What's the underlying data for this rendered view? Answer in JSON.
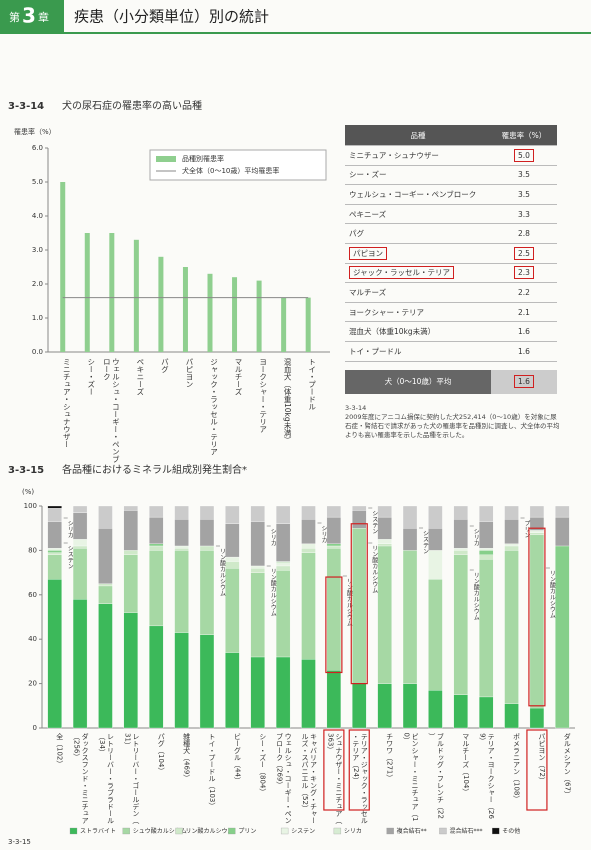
{
  "header": {
    "chapter_prefix": "第",
    "chapter_number": "3",
    "chapter_suffix": "章",
    "title": "疾患（小分類単位）別の統計"
  },
  "chart_data": [
    {
      "type": "bar",
      "id_label": "3-3-14",
      "title": "犬の尿石症の罹患率の高い品種",
      "y_label": "罹患率（%）",
      "categories": [
        "ミニチュア・シュナウザー",
        "シー・ズー",
        "ウェルシュ・コーギー・ペンブローク",
        "ペキニーズ",
        "パグ",
        "パピヨン",
        "ジャック・ラッセル・テリア",
        "マルチーズ",
        "ヨークシャー・テリア",
        "混血犬（体重10kg未満）",
        "トイ・プードル"
      ],
      "series": [
        {
          "name": "品種別罹患率",
          "type": "bar",
          "color": "#8fcf8f",
          "values": [
            5.0,
            3.5,
            3.5,
            3.3,
            2.8,
            2.5,
            2.3,
            2.2,
            2.1,
            1.6,
            1.6
          ]
        },
        {
          "name": "犬全体（0～10歳）平均罹患率",
          "type": "line",
          "color": "#888888",
          "values": [
            1.6,
            1.6,
            1.6,
            1.6,
            1.6,
            1.6,
            1.6,
            1.6,
            1.6,
            1.6,
            1.6
          ]
        }
      ],
      "ylim": [
        0,
        6
      ],
      "yticks": [
        {
          "value": 0,
          "label": "0.0"
        },
        {
          "value": 1,
          "label": "1.0"
        },
        {
          "value": 2,
          "label": "2.0"
        },
        {
          "value": 3,
          "label": "3.0"
        },
        {
          "value": 4,
          "label": "4.0"
        },
        {
          "value": 5,
          "label": "5.0"
        },
        {
          "value": 6,
          "label": "6.0"
        }
      ],
      "grid": false
    },
    {
      "type": "stacked_bar",
      "id_label": "3-3-15",
      "title": "各品種におけるミネラル組成別発生割合*",
      "y_label": "(%)",
      "categories": [
        "全（102）",
        "ダックスフンド・ミニチュア（256）",
        "レトリーバー・ラブラドール（34）",
        "レトリーバー・ゴールデン（31）",
        "パグ（104）",
        "雑種犬（469）",
        "トイ・プードル（103）",
        "ビーグル（44）",
        "シー・ズー（804）",
        "ウェルシュ・コーギー・ペンブローク（269）",
        "キャバリア・キング・チャールズ・スパニエル（52）",
        "シュナウザー・ミニチュア（363）",
        "テリア・ジャック・ラッセル・テリア（24）",
        "チワワ（271）",
        "ピンシャー・ミニチュア（10）",
        "ブルドッグ・フレンチ（22）",
        "マルチーズ（104）",
        "テリア・ヨークシャー（269）",
        "ポメラニアン（108）",
        "パピヨン（72）",
        "ダルメシアン（67）"
      ],
      "series": [
        {
          "name": "ストラバイト",
          "color": "#3cb95a",
          "values": [
            67,
            58,
            56,
            52,
            46,
            43,
            42,
            34,
            32,
            32,
            31,
            26,
            20,
            20,
            20,
            17,
            15,
            14,
            11,
            9,
            0
          ]
        },
        {
          "name": "シュウ酸カルシウム",
          "color": "#a6d8a4",
          "values": [
            11,
            23,
            8,
            26,
            34,
            37,
            38,
            38,
            38,
            39,
            48,
            55,
            70,
            62,
            60,
            50,
            63,
            62,
            69,
            78,
            0
          ]
        },
        {
          "name": "リン酸カルシウム",
          "color": "#cfe9c9",
          "values": [
            1,
            1,
            1,
            2,
            2,
            1,
            2,
            3,
            2,
            2,
            2,
            1,
            0,
            1,
            0,
            0,
            2,
            2,
            2,
            1,
            0
          ]
        },
        {
          "name": "プリン",
          "color": "#86cf8a",
          "values": [
            1,
            0,
            0,
            0,
            1,
            0,
            0,
            0,
            0,
            0,
            0,
            1,
            0,
            0,
            0,
            0,
            0,
            2,
            0,
            0,
            82
          ]
        },
        {
          "name": "システン",
          "color": "#e8f4e4",
          "values": [
            1,
            3,
            0,
            0,
            0,
            1,
            0,
            2,
            1,
            1,
            2,
            0,
            0,
            2,
            0,
            13,
            1,
            1,
            1,
            1,
            0
          ]
        },
        {
          "name": "シリカ",
          "color": "#d7ecd3",
          "values": [
            0,
            0,
            0,
            0,
            0,
            0,
            0,
            0,
            0,
            1,
            0,
            0,
            0,
            0,
            0,
            0,
            0,
            0,
            0,
            0,
            0
          ]
        },
        {
          "name": "複合結石**",
          "color": "#a3a3a3",
          "values": [
            12,
            12,
            25,
            18,
            12,
            12,
            12,
            15,
            20,
            17,
            11,
            12,
            8,
            10,
            10,
            10,
            13,
            12,
            11,
            6,
            13
          ]
        },
        {
          "name": "混合結石***",
          "color": "#cbcbcb",
          "values": [
            6,
            3,
            10,
            2,
            5,
            6,
            6,
            8,
            7,
            8,
            6,
            5,
            2,
            5,
            10,
            10,
            6,
            7,
            6,
            5,
            5
          ]
        },
        {
          "name": "その他",
          "color": "#111111",
          "values": [
            1,
            0,
            0,
            0,
            0,
            0,
            0,
            0,
            0,
            0,
            0,
            0,
            0,
            0,
            0,
            0,
            0,
            0,
            0,
            0,
            0
          ]
        }
      ],
      "ylim": [
        0,
        100
      ],
      "yticks": [
        0,
        20,
        40,
        60,
        80,
        100
      ],
      "grid": false,
      "annotations": [
        "シリカ",
        "システン",
        "リン酸カルシウム",
        "シリカ",
        "リン酸カルシウム",
        "シリカ",
        "リン酸カルシウム",
        "システン",
        "リン酸カルシウム",
        "システン",
        "シリカ",
        "リン酸カルシウム",
        "プリン",
        "リン酸カルシウム"
      ]
    }
  ],
  "table": {
    "headers": [
      "品種",
      "罹患率（%）"
    ],
    "rows": [
      [
        "ミニチュア・シュナウザー",
        "5.0"
      ],
      [
        "シー・ズー",
        "3.5"
      ],
      [
        "ウェルシュ・コーギー・ペンブローク",
        "3.5"
      ],
      [
        "ペキニーズ",
        "3.3"
      ],
      [
        "パグ",
        "2.8"
      ],
      [
        "パピヨン",
        "2.5"
      ],
      [
        "ジャック・ラッセル・テリア",
        "2.3"
      ],
      [
        "マルチーズ",
        "2.2"
      ],
      [
        "ヨークシャー・テリア",
        "2.1"
      ],
      [
        "混血犬（体重10kg未満）",
        "1.6"
      ],
      [
        "トイ・プードル",
        "1.6"
      ]
    ],
    "footer": [
      "犬（0～10歳）平均",
      "1.6"
    ]
  },
  "caption": {
    "label": "3-3-14",
    "text": "2009年度にアニコム損保に契約した犬252,414（0～10歳）を対象に尿石症・腎結石で請求があった犬の罹患率を品種別に調査し、犬全体の平均よりも高い罹患率を示した品種を示した。"
  },
  "footer": "3-3-15"
}
